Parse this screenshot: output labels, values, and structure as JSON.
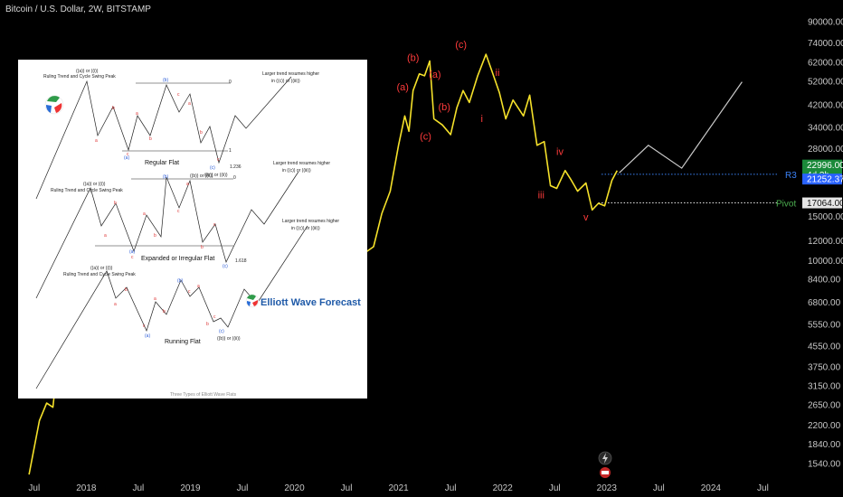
{
  "header": {
    "ticker": "Bitcoin / U.S. Dollar, 2W, BITSTAMP"
  },
  "colors": {
    "background": "#000000",
    "price_line": "#f5e12a",
    "projection": "#c9c9c9",
    "wave_labels": "#ff3b3b",
    "r3_line": "#3b82f6",
    "pivot_line": "#e6e6e6",
    "pivot_text": "#4caf50",
    "badge_green": "#1b8a3a",
    "badge_blue": "#2962ff"
  },
  "chart_data": {
    "type": "line",
    "y_scale": "log",
    "ylim": [
      1300,
      100000
    ],
    "y_ticks": [
      "90000.00",
      "74000.00",
      "62000.00",
      "52000.00",
      "42000.00",
      "34000.00",
      "28000.00",
      "22996.00",
      "21252.37",
      "17064.00",
      "15000.00",
      "12000.00",
      "10000.00",
      "8400.00",
      "6800.00",
      "5550.00",
      "4550.00",
      "3750.00",
      "3150.00",
      "2650.00",
      "2200.00",
      "1840.00",
      "1540.00"
    ],
    "x_ticks": [
      "Jul",
      "2018",
      "Jul",
      "2019",
      "Jul",
      "2020",
      "Jul",
      "2021",
      "Jul",
      "2022",
      "Jul",
      "2023",
      "Jul",
      "2024",
      "Jul"
    ],
    "series": [
      {
        "values": [
          [
            2017.45,
            1400
          ],
          [
            2017.55,
            2300
          ],
          [
            2017.62,
            2700
          ],
          [
            2017.68,
            2600
          ],
          [
            2017.72,
            3700
          ],
          [
            2017.76,
            3100
          ],
          [
            2017.8,
            4300
          ],
          [
            2017.85,
            4500
          ],
          [
            2017.9,
            6500
          ],
          [
            2017.94,
            8500
          ],
          [
            2017.97,
            16000
          ],
          [
            2018.0,
            13500
          ],
          [
            2018.04,
            11500
          ],
          [
            2018.08,
            8500
          ],
          [
            2018.12,
            10500
          ],
          [
            2018.17,
            9500
          ],
          [
            2018.22,
            7200
          ],
          [
            2018.3,
            9400
          ],
          [
            2018.36,
            8000
          ],
          [
            2018.42,
            6500
          ],
          [
            2018.5,
            6300
          ],
          [
            2018.55,
            7800
          ],
          [
            2018.6,
            6300
          ],
          [
            2018.7,
            6600
          ],
          [
            2018.8,
            6300
          ],
          [
            2018.85,
            5500
          ],
          [
            2018.88,
            4000
          ],
          [
            2018.95,
            3200
          ],
          [
            2019.0,
            3800
          ],
          [
            2019.08,
            3450
          ],
          [
            2019.2,
            4100
          ],
          [
            2019.3,
            5300
          ],
          [
            2019.4,
            8200
          ],
          [
            2019.45,
            11000
          ],
          [
            2019.48,
            10000
          ],
          [
            2019.52,
            12500
          ],
          [
            2019.58,
            10500
          ],
          [
            2019.68,
            9300
          ],
          [
            2019.76,
            8000
          ],
          [
            2019.82,
            9200
          ],
          [
            2019.88,
            7300
          ],
          [
            2019.95,
            7200
          ],
          [
            2020.05,
            8500
          ],
          [
            2020.12,
            9800
          ],
          [
            2020.18,
            5300
          ],
          [
            2020.24,
            6800
          ],
          [
            2020.32,
            8800
          ],
          [
            2020.42,
            9500
          ],
          [
            2020.5,
            9200
          ],
          [
            2020.58,
            11500
          ],
          [
            2020.68,
            10800
          ],
          [
            2020.76,
            11400
          ],
          [
            2020.84,
            15500
          ],
          [
            2020.92,
            19000
          ],
          [
            2021.0,
            29000
          ],
          [
            2021.06,
            38000
          ],
          [
            2021.1,
            33000
          ],
          [
            2021.14,
            48000
          ],
          [
            2021.2,
            56000
          ],
          [
            2021.25,
            55000
          ],
          [
            2021.3,
            63000
          ],
          [
            2021.34,
            37000
          ],
          [
            2021.42,
            35000
          ],
          [
            2021.5,
            32000
          ],
          [
            2021.56,
            41000
          ],
          [
            2021.62,
            48000
          ],
          [
            2021.68,
            43000
          ],
          [
            2021.76,
            55000
          ],
          [
            2021.84,
            67000
          ],
          [
            2021.9,
            57000
          ],
          [
            2021.97,
            47000
          ],
          [
            2022.03,
            37000
          ],
          [
            2022.1,
            44000
          ],
          [
            2022.2,
            38000
          ],
          [
            2022.26,
            46000
          ],
          [
            2022.33,
            29000
          ],
          [
            2022.4,
            30000
          ],
          [
            2022.46,
            20000
          ],
          [
            2022.52,
            19500
          ],
          [
            2022.6,
            23000
          ],
          [
            2022.66,
            21000
          ],
          [
            2022.72,
            19000
          ],
          [
            2022.8,
            20500
          ],
          [
            2022.86,
            16000
          ],
          [
            2022.92,
            17000
          ],
          [
            2022.98,
            16600
          ],
          [
            2023.05,
            21000
          ],
          [
            2023.1,
            23000
          ]
        ]
      }
    ],
    "projection": [
      [
        2023.12,
        22500
      ],
      [
        2023.4,
        29000
      ],
      [
        2023.72,
        23500
      ],
      [
        2024.3,
        52000
      ]
    ],
    "levels": [
      {
        "name": "R3",
        "value": 22200
      },
      {
        "name": "Pivot",
        "value": 17064
      }
    ],
    "price_badges": [
      {
        "text": "22996.00",
        "value": 22996
      },
      {
        "text": "4d 3h",
        "value": 22996
      },
      {
        "text": "21252.37",
        "value": 21252.37
      },
      {
        "text": "17064.00",
        "value": 17064
      }
    ],
    "wave_labels": [
      {
        "text": "(a)",
        "x": 2021.04,
        "y": 48000
      },
      {
        "text": "(b)",
        "x": 2021.14,
        "y": 63000
      },
      {
        "text": "(c)",
        "x": 2021.26,
        "y": 30500
      },
      {
        "text": "(a)",
        "x": 2021.35,
        "y": 54000
      },
      {
        "text": "(b)",
        "x": 2021.44,
        "y": 40000
      },
      {
        "text": "(c)",
        "x": 2021.6,
        "y": 71000
      },
      {
        "text": "i",
        "x": 2021.8,
        "y": 36000
      },
      {
        "text": "ii",
        "x": 2021.95,
        "y": 55000
      },
      {
        "text": "iii",
        "x": 2022.37,
        "y": 17800
      },
      {
        "text": "iv",
        "x": 2022.55,
        "y": 26500
      },
      {
        "text": "v",
        "x": 2022.8,
        "y": 14500
      }
    ]
  },
  "inset": {
    "watermark": "Elliott Wave Forecast",
    "footer": "Three Types of Elliott Wave Flats",
    "panels": [
      {
        "title": "Regular Flat",
        "peak_label": "((a)) or ((i))",
        "peak_note": "Ruling Trend and Cycle Swing Peak",
        "resume_label": "Larger trend resumes higher",
        "resume_sub": "in ((c)) or ((iii))",
        "b_label": "(b)",
        "a_label": "(a)",
        "c_label": "(c)",
        "end_label": "((b)) or ((ii))",
        "ratio_top": "0",
        "ratio_mid": "1",
        "ratio_low": "1.236",
        "letters": [
          "a",
          "b",
          "c",
          "a",
          "b",
          "c",
          "a",
          "b",
          "c"
        ]
      },
      {
        "title": "Expanded or Irregular Flat",
        "peak_label": "((a)) or ((i))",
        "peak_note": "Ruling Trend and Cycle Swing Peak",
        "resume_label": "Larger trend resumes higher",
        "resume_sub": "in ((c)) or ((iii))",
        "b_label": "(b)",
        "a_label": "(a)",
        "c_label": "(c)",
        "end_label": "((b)) or ((ii))",
        "ratio_top": "0",
        "ratio_low": "1.618",
        "letters": [
          "a",
          "b",
          "c",
          "a",
          "b",
          "c",
          "a",
          "b",
          "c"
        ]
      },
      {
        "title": "Running Flat",
        "peak_label": "((a)) or ((i))",
        "peak_note": "Ruling Trend and Cycle Swing Peak",
        "resume_label": "Larger trend resumes higher",
        "resume_sub": "in ((c)) or ((iii))",
        "b_label": "(b)",
        "a_label": "(a)",
        "c_label": "(c)",
        "end_label": "((b)) or ((ii))",
        "letters": [
          "a",
          "b",
          "c",
          "a",
          "b",
          "c",
          "a",
          "b",
          "c"
        ]
      }
    ]
  }
}
